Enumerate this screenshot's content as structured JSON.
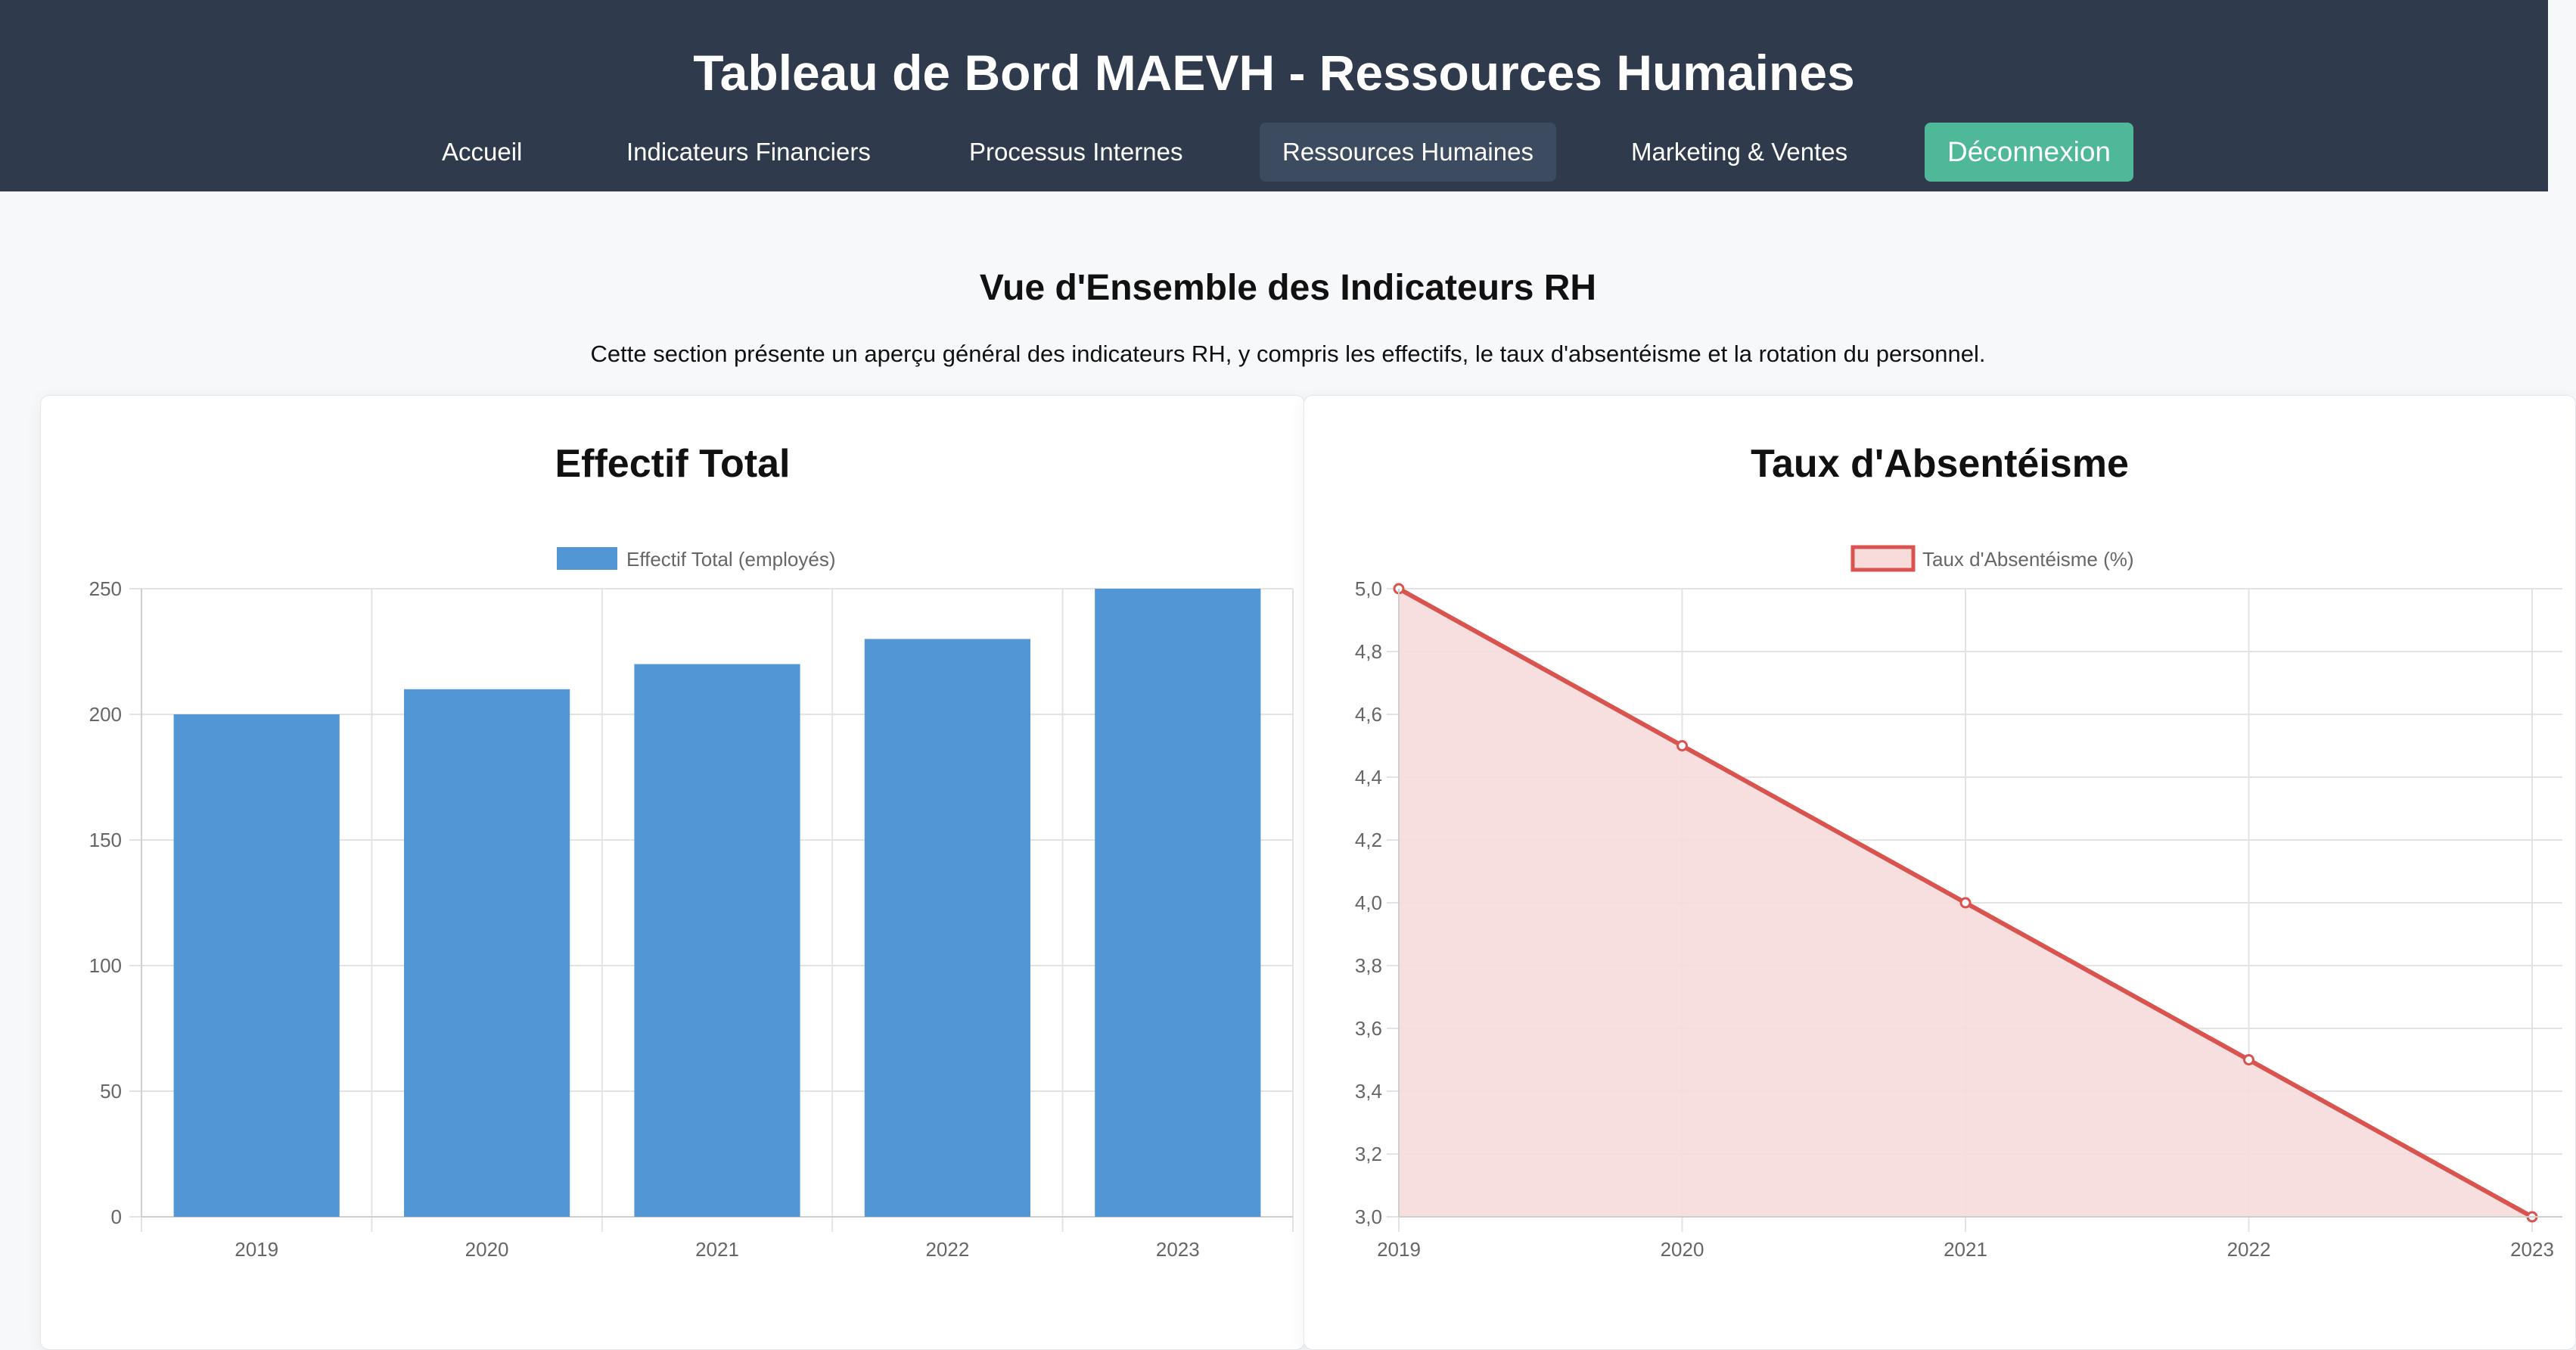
{
  "header": {
    "title": "Tableau de Bord MAEVH - Ressources Humaines",
    "nav": [
      {
        "label": "Accueil",
        "active": false
      },
      {
        "label": "Indicateurs Financiers",
        "active": false
      },
      {
        "label": "Processus Internes",
        "active": false
      },
      {
        "label": "Ressources Humaines",
        "active": true
      },
      {
        "label": "Marketing & Ventes",
        "active": false
      }
    ],
    "logout_label": "Déconnexion"
  },
  "section": {
    "title": "Vue d'Ensemble des Indicateurs RH",
    "description": "Cette section présente un aperçu général des indicateurs RH, y compris les effectifs, le taux d'absentéisme et la rotation du personnel."
  },
  "colors": {
    "header_bg": "#2f3b4c",
    "logout_bg": "#4fb899",
    "bar": "#5296d5",
    "line": "#d9534f",
    "line_fill": "#f7dcdb"
  },
  "chart_data": [
    {
      "type": "bar",
      "title": "Effectif Total",
      "categories": [
        "2019",
        "2020",
        "2021",
        "2022",
        "2023"
      ],
      "series": [
        {
          "name": "Effectif Total (employés)",
          "values": [
            200,
            210,
            220,
            230,
            250
          ]
        }
      ],
      "yticks": [
        "0",
        "50",
        "100",
        "150",
        "200",
        "250"
      ],
      "ylim": [
        0,
        250
      ],
      "grid": true,
      "legend": "top"
    },
    {
      "type": "area",
      "title": "Taux d'Absentéisme",
      "categories": [
        "2019",
        "2020",
        "2021",
        "2022",
        "2023"
      ],
      "series": [
        {
          "name": "Taux d'Absentéisme (%)",
          "values": [
            5.0,
            4.5,
            4.0,
            3.5,
            3.0
          ]
        }
      ],
      "yticks": [
        "3,0",
        "3,2",
        "3,4",
        "3,6",
        "3,8",
        "4,0",
        "4,2",
        "4,4",
        "4,6",
        "4,8",
        "5,0"
      ],
      "ylim": [
        3.0,
        5.0
      ],
      "grid": true,
      "legend": "top"
    }
  ]
}
